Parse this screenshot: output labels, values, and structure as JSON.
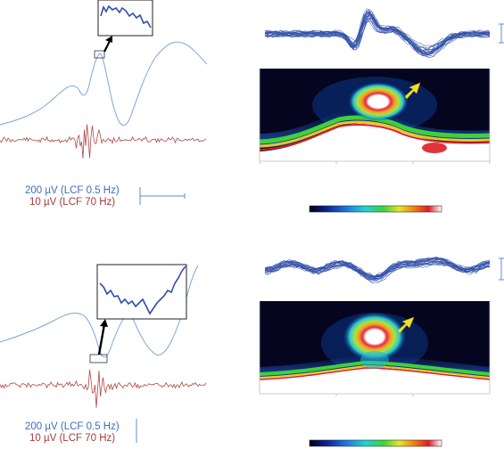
{
  "colors": {
    "raw_trace": "#7fa6d8",
    "filtered_trace": "#b24848",
    "overlay_traces": "#2f4fa8",
    "scalebar": "#5b8fd0",
    "arrow_marker": "#f3e024",
    "heatmap_background": "#05051f"
  },
  "panels": [
    {
      "id": "top",
      "scalebar_labels": {
        "raw": "200 µV (LCF 0.5 Hz)",
        "filtered": "10 µV (LCF 70 Hz)"
      },
      "icons": [
        "zoom-inset",
        "pointer-arrow",
        "yellow-arrow-marker",
        "colorbar"
      ]
    },
    {
      "id": "bottom",
      "scalebar_labels": {
        "raw": "200 µV (LCF 0.5 Hz)",
        "filtered": "10 µV (LCF 70 Hz)"
      },
      "icons": [
        "zoom-inset",
        "pointer-arrow",
        "yellow-arrow-marker",
        "colorbar"
      ]
    }
  ]
}
